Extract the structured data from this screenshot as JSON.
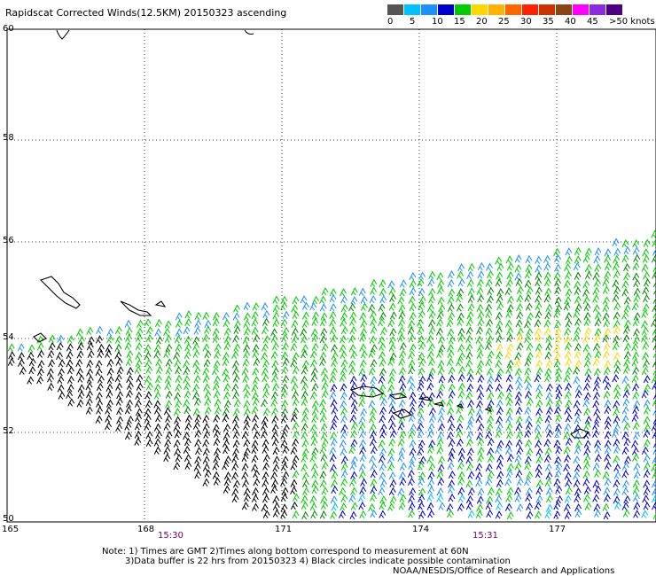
{
  "title": "Rapidscat Corrected Winds(12.5KM) 20150323 ascending",
  "legend": {
    "colors": [
      "#555555",
      "#00bfff",
      "#1e90ff",
      "#0000cd",
      "#00cc00",
      "#ffd700",
      "#ffb300",
      "#ff6600",
      "#ff2200",
      "#cc3300",
      "#8b4513",
      "#ff00ff",
      "#8a2be2",
      "#4b0082"
    ],
    "labels": [
      "0",
      "5",
      "10",
      "15",
      "20",
      "25",
      "30",
      "35",
      "40",
      "45",
      ">50 knots"
    ]
  },
  "axes": {
    "lat_labels": [
      "60",
      "58",
      "56",
      "54",
      "52",
      "50"
    ],
    "lon_labels": [
      "165",
      "168",
      "171",
      "174",
      "177"
    ]
  },
  "times": [
    "15:30",
    "15:31"
  ],
  "notes": {
    "line1": "Note: 1) Times are GMT 2)Times along bottom correspond to measurement at 60N",
    "line2": "3)Data buffer is 22 hrs from 20150323 4) Black circles indicate possible contamination",
    "credit": "NOAA/NESDIS/Office of Research and Applications"
  },
  "map_colors": {
    "black": "#000000",
    "green": "#00cc00",
    "dark_green": "#008800",
    "blue": "#0000cd",
    "light_blue": "#1e90ff",
    "cyan": "#00bfff",
    "yellow": "#ffd700"
  }
}
